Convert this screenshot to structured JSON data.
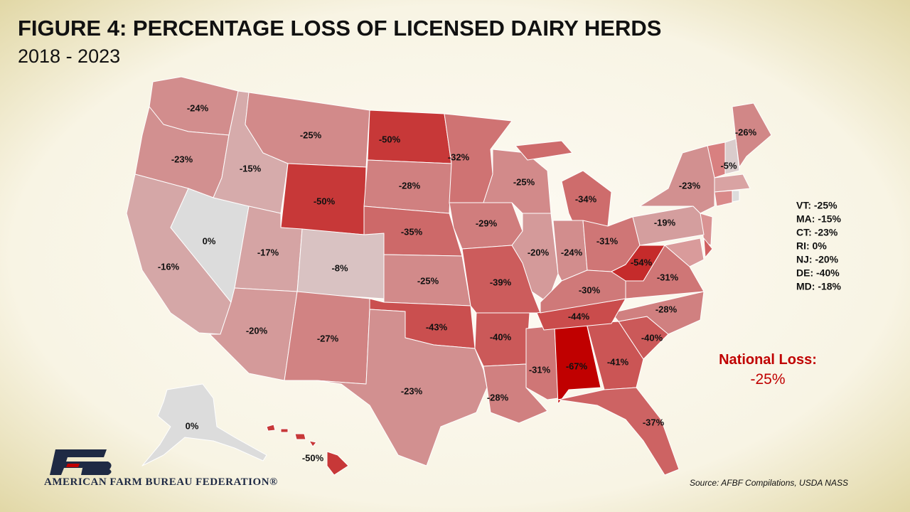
{
  "title": "FIGURE 4: PERCENTAGE LOSS OF LICENSED DAIRY HERDS",
  "subtitle": "2018 - 2023",
  "map": {
    "type": "choropleth",
    "values": [
      -24,
      -23,
      -16,
      0,
      -15,
      -25,
      -50,
      -17,
      -8,
      -20,
      -27,
      -50,
      -28,
      -35,
      -25,
      -43,
      -23,
      -32,
      -29,
      -25,
      -34,
      -20,
      -24,
      -31,
      -39,
      -40,
      -28,
      -31,
      -67,
      -41,
      -37,
      -40,
      -28,
      -44,
      -30,
      -54,
      -31,
      -19,
      -23,
      -26,
      -5,
      0,
      -50
    ],
    "value_labels": [
      "-24%",
      "-23%",
      "-16%",
      "0%",
      "-15%",
      "-25%",
      "-50%",
      "-17%",
      "-8%",
      "-20%",
      "-27%",
      "-50%",
      "-28%",
      "-35%",
      "-25%",
      "-43%",
      "-23%",
      "-32%",
      "-29%",
      "-25%",
      "-34%",
      "-20%",
      "-24%",
      "-31%",
      "-39%",
      "-40%",
      "-28%",
      "-31%",
      "-67%",
      "-41%",
      "-37%",
      "-40%",
      "-28%",
      "-44%",
      "-30%",
      "-54%",
      "-31%",
      "-19%",
      "-23%",
      "-26%",
      "-5%",
      "0%",
      "-50%"
    ],
    "color_range": [
      "#dcdcdc",
      "#c00000"
    ]
  },
  "side_list": [
    "VT: -25%",
    "MA: -15%",
    "CT: -23%",
    "RI: 0%",
    "NJ: -20%",
    "DE: -40%",
    "MD: -18%"
  ],
  "national": {
    "label": "National Loss:",
    "value": "-25%"
  },
  "logo": "AMERICAN FARM BUREAU FEDERATION®",
  "source": "Source: AFBF Compilations, USDA NASS"
}
